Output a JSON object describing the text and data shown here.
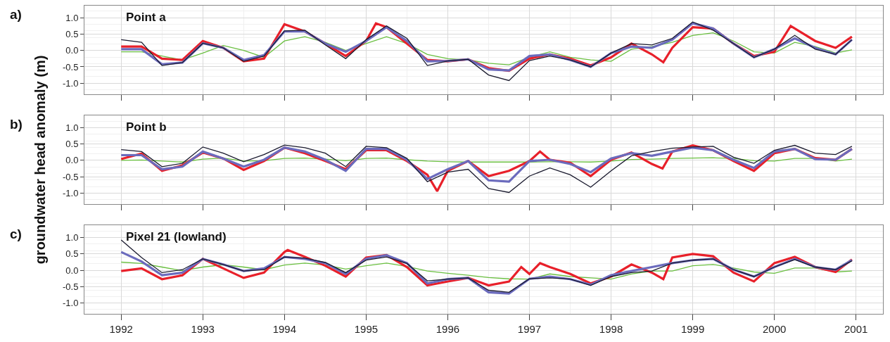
{
  "chart_data": [
    {
      "type": "line",
      "title": "Point a",
      "annotations": [
        "a)"
      ],
      "x": [
        1992.0,
        1992.25,
        1992.5,
        1992.75,
        1993.0,
        1993.25,
        1993.5,
        1993.75,
        1994.0,
        1994.25,
        1994.5,
        1994.75,
        1995.0,
        1995.25,
        1995.5,
        1995.75,
        1996.0,
        1996.25,
        1996.5,
        1996.75,
        1997.0,
        1997.25,
        1997.5,
        1997.75,
        1998.0,
        1998.25,
        1998.5,
        1998.75,
        1999.0,
        1999.25,
        1999.5,
        1999.75,
        2000.0,
        2000.25,
        2000.5,
        2000.75,
        2000.95
      ],
      "series": [
        {
          "color": "#6abf40",
          "values": [
            -0.04,
            -0.04,
            -0.17,
            -0.29,
            -0.08,
            0.15,
            0.0,
            -0.21,
            0.29,
            0.42,
            0.25,
            0.0,
            0.21,
            0.42,
            0.21,
            -0.12,
            -0.25,
            -0.29,
            -0.39,
            -0.44,
            -0.21,
            -0.04,
            -0.21,
            -0.29,
            -0.33,
            0.04,
            0.12,
            0.25,
            0.46,
            0.54,
            0.29,
            -0.04,
            -0.08,
            0.25,
            0.12,
            -0.08,
            0.02
          ]
        },
        {
          "color": "#e8202a",
          "x": [
            1992.0,
            1992.25,
            1992.5,
            1992.75,
            1993.0,
            1993.25,
            1993.5,
            1993.75,
            1994.0,
            1994.25,
            1994.5,
            1994.75,
            1995.0,
            1995.12,
            1995.25,
            1995.5,
            1995.75,
            1996.0,
            1996.25,
            1996.5,
            1996.75,
            1997.0,
            1997.25,
            1997.5,
            1997.75,
            1998.0,
            1998.25,
            1998.5,
            1998.64,
            1998.75,
            1999.0,
            1999.25,
            1999.5,
            1999.75,
            2000.0,
            2000.2,
            2000.5,
            2000.75,
            2000.95
          ],
          "values": [
            0.12,
            0.12,
            -0.25,
            -0.29,
            0.29,
            0.08,
            -0.33,
            -0.25,
            0.8,
            0.58,
            0.21,
            -0.17,
            0.29,
            0.83,
            0.71,
            0.21,
            -0.29,
            -0.33,
            -0.27,
            -0.54,
            -0.62,
            -0.25,
            -0.12,
            -0.25,
            -0.46,
            -0.21,
            0.21,
            -0.12,
            -0.36,
            0.08,
            0.71,
            0.67,
            0.21,
            -0.17,
            -0.04,
            0.75,
            0.29,
            0.08,
            0.42
          ]
        },
        {
          "color": "#6b6bbd",
          "values": [
            0.04,
            0.04,
            -0.42,
            -0.37,
            0.22,
            0.08,
            -0.29,
            -0.14,
            0.58,
            0.58,
            0.21,
            -0.04,
            0.29,
            0.71,
            0.29,
            -0.33,
            -0.32,
            -0.27,
            -0.58,
            -0.61,
            -0.17,
            -0.12,
            -0.29,
            -0.5,
            -0.08,
            0.12,
            0.08,
            0.33,
            0.83,
            0.67,
            0.21,
            -0.21,
            0.04,
            0.37,
            0.08,
            -0.12,
            0.33
          ]
        },
        {
          "color": "#1a1a2e",
          "values": [
            0.33,
            0.25,
            -0.46,
            -0.37,
            0.22,
            0.08,
            -0.33,
            -0.17,
            0.6,
            0.62,
            0.17,
            -0.25,
            0.33,
            0.75,
            0.37,
            -0.46,
            -0.32,
            -0.27,
            -0.75,
            -0.92,
            -0.31,
            -0.17,
            -0.29,
            -0.5,
            -0.08,
            0.21,
            0.17,
            0.37,
            0.87,
            0.62,
            0.21,
            -0.21,
            0.04,
            0.46,
            0.04,
            -0.12,
            0.33
          ]
        }
      ],
      "xlim": [
        1991.55,
        2001.33
      ],
      "xticks": [
        1992,
        1993,
        1994,
        1995,
        1996,
        1997,
        1998,
        1999,
        2000,
        2001
      ],
      "ylim": [
        -1.33,
        1.37
      ],
      "yticks": [
        {
          "value": 1,
          "label": "1.0"
        },
        {
          "value": 0.5,
          "label": "0.5"
        },
        {
          "value": 0,
          "label": "0.0"
        },
        {
          "value": -0.5,
          "label": "-0.5"
        },
        {
          "value": -1,
          "label": "-1.0"
        }
      ],
      "tick_labels": "y",
      "grid": true
    },
    {
      "type": "line",
      "title": "Point b",
      "annotations": [
        "b)"
      ],
      "ylabel": "groundwater head anomaly (m)",
      "x": [
        1992.0,
        1992.25,
        1992.5,
        1992.75,
        1993.0,
        1993.25,
        1993.5,
        1993.75,
        1994.0,
        1994.25,
        1994.5,
        1994.75,
        1995.0,
        1995.25,
        1995.5,
        1995.75,
        1996.0,
        1996.25,
        1996.5,
        1996.75,
        1997.0,
        1997.25,
        1997.5,
        1997.75,
        1998.0,
        1998.25,
        1998.5,
        1998.75,
        1999.0,
        1999.25,
        1999.5,
        1999.75,
        2000.0,
        2000.25,
        2000.5,
        2000.75,
        2000.95
      ],
      "series": [
        {
          "color": "#6abf40",
          "values": [
            0.0,
            0.01,
            -0.02,
            -0.05,
            0.04,
            0.07,
            -0.02,
            -0.01,
            0.06,
            0.07,
            0.04,
            -0.01,
            0.06,
            0.07,
            0.02,
            -0.02,
            -0.04,
            -0.05,
            -0.05,
            -0.05,
            -0.05,
            -0.04,
            -0.04,
            -0.05,
            -0.02,
            0.03,
            0.04,
            0.06,
            0.07,
            0.08,
            0.06,
            -0.01,
            -0.02,
            0.06,
            0.06,
            -0.02,
            0.04
          ]
        },
        {
          "color": "#e8202a",
          "x": [
            1992.0,
            1992.25,
            1992.5,
            1992.75,
            1993.0,
            1993.25,
            1993.5,
            1993.75,
            1994.0,
            1994.25,
            1994.5,
            1994.75,
            1995.0,
            1995.25,
            1995.5,
            1995.75,
            1995.87,
            1996.0,
            1996.25,
            1996.5,
            1996.75,
            1997.0,
            1997.13,
            1997.25,
            1997.5,
            1997.75,
            1998.0,
            1998.25,
            1998.5,
            1998.63,
            1998.75,
            1999.0,
            1999.25,
            1999.5,
            1999.75,
            2000.0,
            2000.25,
            2000.5,
            2000.75,
            2000.95
          ],
          "values": [
            0.04,
            0.21,
            -0.32,
            -0.15,
            0.24,
            0.06,
            -0.29,
            -0.02,
            0.39,
            0.22,
            -0.02,
            -0.27,
            0.31,
            0.31,
            -0.02,
            -0.44,
            -0.94,
            -0.32,
            -0.02,
            -0.48,
            -0.32,
            -0.02,
            0.27,
            0.02,
            -0.07,
            -0.48,
            0.02,
            0.24,
            -0.11,
            -0.25,
            0.27,
            0.46,
            0.31,
            -0.02,
            -0.32,
            0.22,
            0.35,
            0.07,
            0.02,
            0.35
          ]
        },
        {
          "color": "#6b6bbd",
          "values": [
            0.16,
            0.16,
            -0.27,
            -0.19,
            0.27,
            0.06,
            -0.19,
            0.02,
            0.39,
            0.27,
            0.02,
            -0.32,
            0.35,
            0.35,
            0.02,
            -0.57,
            -0.27,
            -0.02,
            -0.61,
            -0.65,
            -0.02,
            0.02,
            -0.11,
            -0.36,
            0.06,
            0.22,
            0.14,
            0.27,
            0.39,
            0.31,
            0.02,
            -0.23,
            0.27,
            0.35,
            0.04,
            0.02,
            0.35
          ]
        },
        {
          "color": "#1a1a2e",
          "values": [
            0.33,
            0.27,
            -0.19,
            -0.09,
            0.41,
            0.22,
            -0.04,
            0.18,
            0.47,
            0.39,
            0.22,
            -0.19,
            0.43,
            0.39,
            0.06,
            -0.65,
            -0.36,
            -0.27,
            -0.86,
            -0.98,
            -0.48,
            -0.23,
            -0.44,
            -0.82,
            -0.32,
            0.14,
            0.27,
            0.37,
            0.41,
            0.43,
            0.1,
            -0.09,
            0.31,
            0.46,
            0.22,
            0.18,
            0.43
          ]
        }
      ],
      "xlim": [
        1991.55,
        2001.33
      ],
      "xticks": [
        1992,
        1993,
        1994,
        1995,
        1996,
        1997,
        1998,
        1999,
        2000,
        2001
      ],
      "ylim": [
        -1.33,
        1.37
      ],
      "yticks": [
        {
          "value": 1,
          "label": "1.0"
        },
        {
          "value": 0.5,
          "label": "0.5"
        },
        {
          "value": 0,
          "label": "0.0"
        },
        {
          "value": -0.5,
          "label": "-0.5"
        },
        {
          "value": -1,
          "label": "-1.0"
        }
      ],
      "tick_labels": "y",
      "grid": true
    },
    {
      "type": "line",
      "title": "Pixel 21 (lowland)",
      "annotations": [
        "c)"
      ],
      "x": [
        1992.0,
        1992.25,
        1992.5,
        1992.75,
        1993.0,
        1993.25,
        1993.5,
        1993.75,
        1994.0,
        1994.25,
        1994.5,
        1994.75,
        1995.0,
        1995.25,
        1995.5,
        1995.75,
        1996.0,
        1996.25,
        1996.5,
        1996.75,
        1997.0,
        1997.25,
        1997.5,
        1997.75,
        1998.0,
        1998.25,
        1998.5,
        1998.75,
        1999.0,
        1999.25,
        1999.5,
        1999.75,
        2000.0,
        2000.25,
        2000.5,
        2000.75,
        2000.95
      ],
      "series": [
        {
          "color": "#6abf40",
          "values": [
            0.25,
            0.21,
            0.1,
            -0.01,
            0.1,
            0.17,
            0.1,
            0.02,
            0.16,
            0.22,
            0.16,
            0.04,
            0.14,
            0.22,
            0.12,
            -0.02,
            -0.09,
            -0.15,
            -0.22,
            -0.26,
            -0.27,
            -0.11,
            -0.19,
            -0.23,
            -0.27,
            -0.11,
            -0.02,
            -0.02,
            0.14,
            0.18,
            0.07,
            -0.05,
            -0.09,
            0.07,
            0.07,
            -0.05,
            -0.02
          ]
        },
        {
          "color": "#e8202a",
          "x": [
            1992.0,
            1992.25,
            1992.5,
            1992.75,
            1993.0,
            1993.25,
            1993.5,
            1993.75,
            1994.0,
            1994.04,
            1994.25,
            1994.5,
            1994.75,
            1995.0,
            1995.25,
            1995.5,
            1995.75,
            1996.0,
            1996.25,
            1996.5,
            1996.75,
            1996.9,
            1997.0,
            1997.13,
            1997.25,
            1997.5,
            1997.75,
            1998.0,
            1998.25,
            1998.5,
            1998.64,
            1998.75,
            1999.0,
            1999.25,
            1999.5,
            1999.75,
            2000.0,
            2000.25,
            2000.5,
            2000.75,
            2000.95
          ],
          "values": [
            -0.02,
            0.06,
            -0.27,
            -0.15,
            0.35,
            0.06,
            -0.23,
            -0.07,
            0.56,
            0.62,
            0.41,
            0.14,
            -0.19,
            0.39,
            0.47,
            0.1,
            -0.46,
            -0.34,
            -0.23,
            -0.46,
            -0.34,
            0.1,
            -0.11,
            0.22,
            0.1,
            -0.11,
            -0.4,
            -0.19,
            0.18,
            -0.07,
            -0.27,
            0.39,
            0.5,
            0.43,
            -0.07,
            -0.34,
            0.22,
            0.41,
            0.1,
            -0.05,
            0.33
          ]
        },
        {
          "color": "#6b6bbd",
          "values": [
            0.56,
            0.27,
            -0.15,
            -0.07,
            0.35,
            0.18,
            -0.02,
            0.06,
            0.41,
            0.35,
            0.22,
            -0.11,
            0.35,
            0.46,
            0.22,
            -0.4,
            -0.27,
            -0.23,
            -0.67,
            -0.71,
            -0.26,
            -0.19,
            -0.27,
            -0.44,
            -0.15,
            -0.02,
            0.1,
            0.22,
            0.31,
            0.35,
            0.02,
            -0.19,
            0.1,
            0.35,
            0.1,
            0.02,
            0.31
          ]
        },
        {
          "color": "#1a1a2e",
          "values": [
            0.93,
            0.39,
            -0.07,
            0.02,
            0.35,
            0.18,
            -0.02,
            0.02,
            0.41,
            0.37,
            0.24,
            -0.07,
            0.31,
            0.41,
            0.21,
            -0.32,
            -0.27,
            -0.23,
            -0.61,
            -0.67,
            -0.26,
            -0.23,
            -0.27,
            -0.46,
            -0.19,
            -0.07,
            -0.02,
            0.22,
            0.31,
            0.35,
            0.02,
            -0.19,
            0.1,
            0.33,
            0.1,
            0.02,
            0.29
          ]
        }
      ],
      "xlim": [
        1991.55,
        2001.33
      ],
      "xticks": [
        1992,
        1993,
        1994,
        1995,
        1996,
        1997,
        1998,
        1999,
        2000,
        2001
      ],
      "ylim": [
        -1.33,
        1.37
      ],
      "yticks": [
        {
          "value": 1,
          "label": "1.0"
        },
        {
          "value": 0.5,
          "label": "0.5"
        },
        {
          "value": 0,
          "label": "0.0"
        },
        {
          "value": -0.5,
          "label": "-0.5"
        },
        {
          "value": -1,
          "label": "-1.0"
        }
      ],
      "grid": true
    }
  ]
}
